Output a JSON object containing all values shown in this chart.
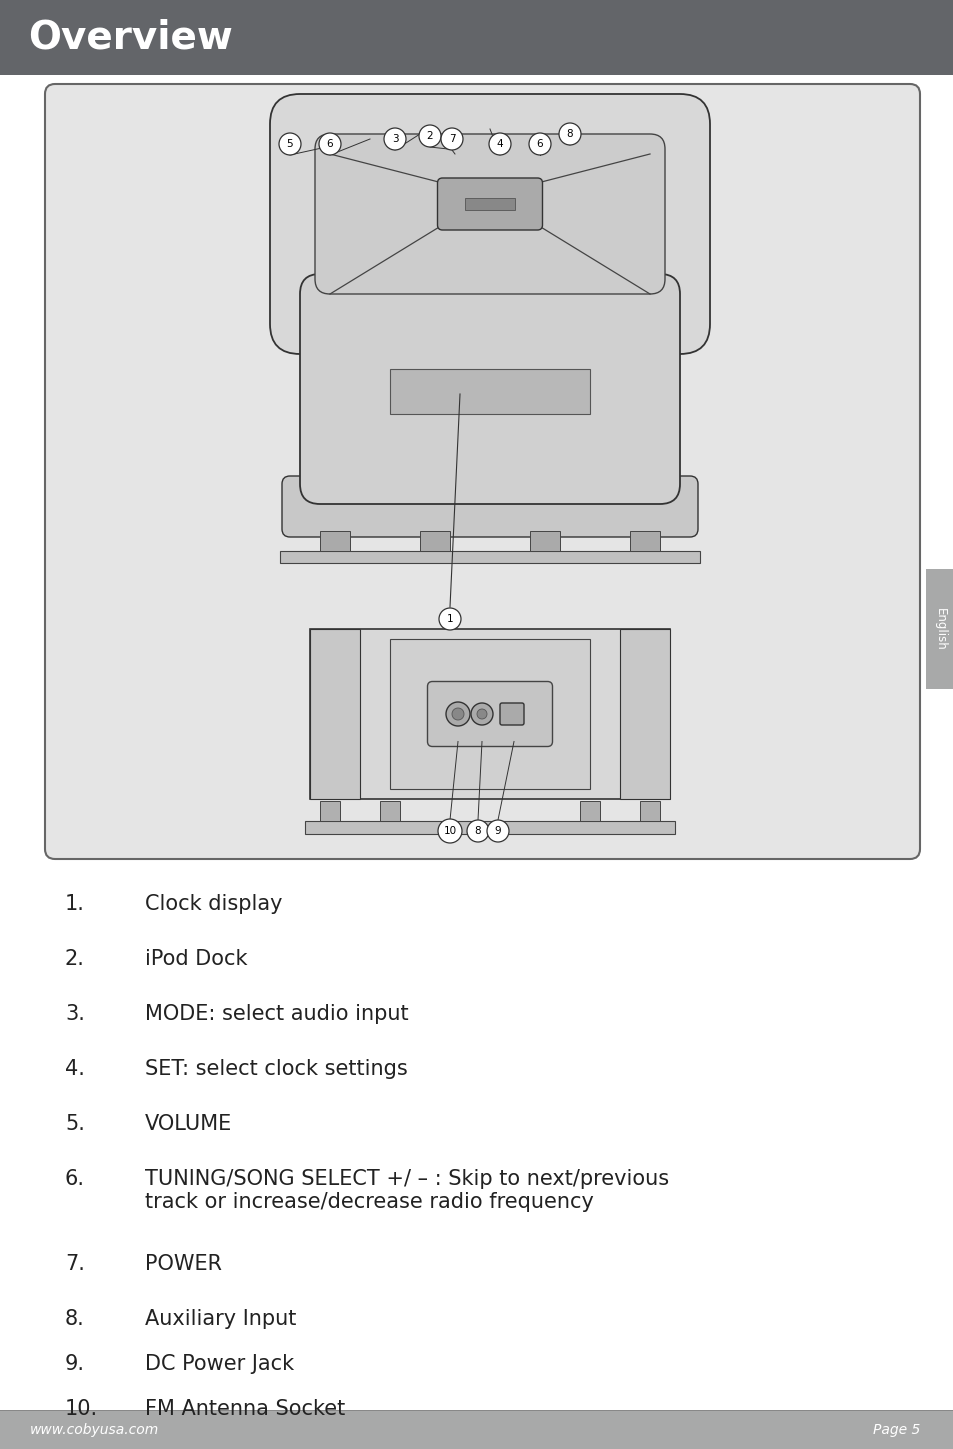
{
  "title": "Overview",
  "title_bg_color": "#636569",
  "title_text_color": "#ffffff",
  "title_fontsize": 28,
  "page_bg_color": "#ffffff",
  "footer_bg_color": "#a8a9a9",
  "footer_left": "www.cobyusa.com",
  "footer_right": "Page 5",
  "sidebar_color": "#a8a9a9",
  "sidebar_text": "English",
  "diagram_bg": "#e5e5e5",
  "items": [
    {
      "num": "1.",
      "text": "Clock display"
    },
    {
      "num": "2.",
      "text": "iPod Dock"
    },
    {
      "num": "3.",
      "text": "MODE: select audio input"
    },
    {
      "num": "4.",
      "text": "SET: select clock settings"
    },
    {
      "num": "5.",
      "text": "VOLUME"
    },
    {
      "num": "6.",
      "text": "TUNING/SONG SELECT +/ – : Skip to next/previous\ntrack or increase/decrease radio frequency"
    },
    {
      "num": "7.",
      "text": "POWER"
    },
    {
      "num": "8.",
      "text": "Auxiliary Input"
    },
    {
      "num": "9.",
      "text": "DC Power Jack"
    },
    {
      "num": "10.",
      "text": "FM Antenna Socket"
    }
  ]
}
